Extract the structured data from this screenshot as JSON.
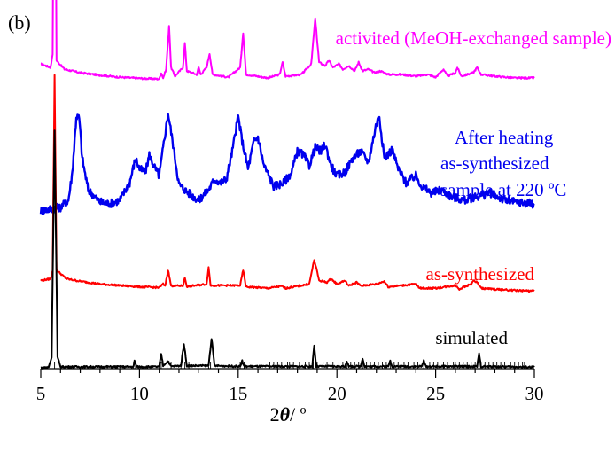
{
  "panel_label": "(b)",
  "chart_data": {
    "type": "line",
    "xlabel_main": "2",
    "xlabel_symbol": "θ",
    "xlabel_unit": "/ º",
    "ylabel": "",
    "xlim": [
      5,
      30
    ],
    "xticks": [
      "5",
      "10",
      "15",
      "20",
      "25",
      "30"
    ],
    "grid": false,
    "legend": "none",
    "series": [
      {
        "name": "activited (MeOH-exchanged sample)",
        "color": "#ff00ff",
        "baseline": 0.82,
        "points": [
          [
            5.0,
            0.87
          ],
          [
            5.5,
            0.86
          ],
          [
            5.6,
            0.9
          ],
          [
            5.7,
            1.82
          ],
          [
            5.8,
            0.88
          ],
          [
            6.2,
            0.855
          ],
          [
            7,
            0.845
          ],
          [
            8,
            0.838
          ],
          [
            9,
            0.832
          ],
          [
            10,
            0.829
          ],
          [
            11,
            0.827
          ],
          [
            11.1,
            0.845
          ],
          [
            11.2,
            0.83
          ],
          [
            11.35,
            0.855
          ],
          [
            11.5,
            0.98
          ],
          [
            11.6,
            0.86
          ],
          [
            11.8,
            0.835
          ],
          [
            12.2,
            0.86
          ],
          [
            12.3,
            0.93
          ],
          [
            12.4,
            0.85
          ],
          [
            12.9,
            0.84
          ],
          [
            13.0,
            0.86
          ],
          [
            13.1,
            0.84
          ],
          [
            13.4,
            0.86
          ],
          [
            13.55,
            0.9
          ],
          [
            13.7,
            0.84
          ],
          [
            14.5,
            0.832
          ],
          [
            15.1,
            0.86
          ],
          [
            15.25,
            0.96
          ],
          [
            15.4,
            0.84
          ],
          [
            16.5,
            0.83
          ],
          [
            17.1,
            0.84
          ],
          [
            17.25,
            0.875
          ],
          [
            17.4,
            0.835
          ],
          [
            18.2,
            0.84
          ],
          [
            18.7,
            0.87
          ],
          [
            18.9,
            1.0
          ],
          [
            19.1,
            0.875
          ],
          [
            19.4,
            0.865
          ],
          [
            19.6,
            0.88
          ],
          [
            19.8,
            0.86
          ],
          [
            20.1,
            0.87
          ],
          [
            20.3,
            0.855
          ],
          [
            20.6,
            0.865
          ],
          [
            20.9,
            0.85
          ],
          [
            21.1,
            0.875
          ],
          [
            21.3,
            0.85
          ],
          [
            21.6,
            0.855
          ],
          [
            21.9,
            0.845
          ],
          [
            22.2,
            0.85
          ],
          [
            22.6,
            0.84
          ],
          [
            23.3,
            0.84
          ],
          [
            24.0,
            0.835
          ],
          [
            24.6,
            0.84
          ],
          [
            25.0,
            0.832
          ],
          [
            25.4,
            0.855
          ],
          [
            25.6,
            0.835
          ],
          [
            26.0,
            0.845
          ],
          [
            26.1,
            0.86
          ],
          [
            26.3,
            0.835
          ],
          [
            26.9,
            0.845
          ],
          [
            27.1,
            0.86
          ],
          [
            27.3,
            0.84
          ],
          [
            28.0,
            0.835
          ],
          [
            29.0,
            0.83
          ],
          [
            30.0,
            0.83
          ]
        ]
      },
      {
        "name": "After heating",
        "label_lines": [
          "After heating",
          "as-synthesized",
          "sample at 220 ºC"
        ],
        "color": "#0000ee",
        "baseline": 0.45,
        "noise": 0.012,
        "points": [
          [
            5.0,
            0.45
          ],
          [
            5.5,
            0.455
          ],
          [
            6.0,
            0.46
          ],
          [
            6.4,
            0.48
          ],
          [
            6.6,
            0.56
          ],
          [
            6.8,
            0.72
          ],
          [
            6.95,
            0.715
          ],
          [
            7.1,
            0.6
          ],
          [
            7.4,
            0.51
          ],
          [
            8.0,
            0.475
          ],
          [
            8.5,
            0.47
          ],
          [
            9.0,
            0.48
          ],
          [
            9.5,
            0.53
          ],
          [
            9.8,
            0.6
          ],
          [
            10.0,
            0.57
          ],
          [
            10.3,
            0.56
          ],
          [
            10.5,
            0.61
          ],
          [
            10.8,
            0.57
          ],
          [
            11.0,
            0.55
          ],
          [
            11.2,
            0.63
          ],
          [
            11.45,
            0.73
          ],
          [
            11.7,
            0.64
          ],
          [
            12.0,
            0.525
          ],
          [
            12.5,
            0.5
          ],
          [
            13.0,
            0.48
          ],
          [
            13.5,
            0.51
          ],
          [
            13.8,
            0.54
          ],
          [
            14.1,
            0.53
          ],
          [
            14.4,
            0.54
          ],
          [
            14.7,
            0.62
          ],
          [
            15.0,
            0.72
          ],
          [
            15.2,
            0.65
          ],
          [
            15.5,
            0.57
          ],
          [
            15.8,
            0.65
          ],
          [
            16.0,
            0.66
          ],
          [
            16.3,
            0.58
          ],
          [
            16.8,
            0.52
          ],
          [
            17.3,
            0.53
          ],
          [
            17.7,
            0.56
          ],
          [
            18.0,
            0.62
          ],
          [
            18.3,
            0.61
          ],
          [
            18.6,
            0.58
          ],
          [
            18.9,
            0.63
          ],
          [
            19.2,
            0.62
          ],
          [
            19.4,
            0.64
          ],
          [
            19.7,
            0.58
          ],
          [
            20.0,
            0.55
          ],
          [
            20.4,
            0.56
          ],
          [
            20.8,
            0.6
          ],
          [
            21.2,
            0.62
          ],
          [
            21.6,
            0.59
          ],
          [
            22.0,
            0.7
          ],
          [
            22.15,
            0.72
          ],
          [
            22.4,
            0.6
          ],
          [
            22.8,
            0.625
          ],
          [
            23.1,
            0.57
          ],
          [
            23.5,
            0.53
          ],
          [
            24.0,
            0.55
          ],
          [
            24.3,
            0.52
          ],
          [
            24.8,
            0.5
          ],
          [
            25.3,
            0.51
          ],
          [
            25.8,
            0.49
          ],
          [
            26.5,
            0.48
          ],
          [
            27.0,
            0.49
          ],
          [
            27.8,
            0.5
          ],
          [
            28.5,
            0.48
          ],
          [
            29.0,
            0.475
          ],
          [
            30.0,
            0.47
          ]
        ]
      },
      {
        "name": "as-synthesized",
        "color": "#ff0000",
        "baseline": 0.22,
        "points": [
          [
            5.0,
            0.25
          ],
          [
            5.5,
            0.255
          ],
          [
            5.6,
            0.28
          ],
          [
            5.7,
            0.84
          ],
          [
            5.8,
            0.28
          ],
          [
            6.3,
            0.255
          ],
          [
            7,
            0.248
          ],
          [
            8,
            0.24
          ],
          [
            9,
            0.236
          ],
          [
            10,
            0.232
          ],
          [
            11,
            0.23
          ],
          [
            11.2,
            0.24
          ],
          [
            11.3,
            0.235
          ],
          [
            11.45,
            0.28
          ],
          [
            11.6,
            0.235
          ],
          [
            12.2,
            0.235
          ],
          [
            12.3,
            0.258
          ],
          [
            12.4,
            0.233
          ],
          [
            13.4,
            0.24
          ],
          [
            13.5,
            0.288
          ],
          [
            13.6,
            0.236
          ],
          [
            15.1,
            0.236
          ],
          [
            15.25,
            0.28
          ],
          [
            15.4,
            0.232
          ],
          [
            16.5,
            0.228
          ],
          [
            17.2,
            0.234
          ],
          [
            17.4,
            0.228
          ],
          [
            18.6,
            0.24
          ],
          [
            18.85,
            0.31
          ],
          [
            19.1,
            0.25
          ],
          [
            19.5,
            0.245
          ],
          [
            19.7,
            0.255
          ],
          [
            20.0,
            0.24
          ],
          [
            20.4,
            0.25
          ],
          [
            20.6,
            0.235
          ],
          [
            21.0,
            0.245
          ],
          [
            21.2,
            0.235
          ],
          [
            22.0,
            0.24
          ],
          [
            22.4,
            0.248
          ],
          [
            22.6,
            0.232
          ],
          [
            24.0,
            0.24
          ],
          [
            24.2,
            0.228
          ],
          [
            25.0,
            0.228
          ],
          [
            26.0,
            0.236
          ],
          [
            26.2,
            0.226
          ],
          [
            26.8,
            0.24
          ],
          [
            26.9,
            0.25
          ],
          [
            27.1,
            0.245
          ],
          [
            27.3,
            0.228
          ],
          [
            28.0,
            0.225
          ],
          [
            29.0,
            0.222
          ],
          [
            30.0,
            0.22
          ]
        ]
      },
      {
        "name": "simulated",
        "color": "#000000",
        "baseline": 0.0,
        "points": [
          [
            5.0,
            0.0
          ],
          [
            5.4,
            0.002
          ],
          [
            5.55,
            0.03
          ],
          [
            5.7,
            0.68
          ],
          [
            5.85,
            0.03
          ],
          [
            6.0,
            0.003
          ],
          [
            9.7,
            0.003
          ],
          [
            9.75,
            0.02
          ],
          [
            9.85,
            0.003
          ],
          [
            11.0,
            0.003
          ],
          [
            11.1,
            0.04
          ],
          [
            11.2,
            0.006
          ],
          [
            11.45,
            0.02
          ],
          [
            11.6,
            0.004
          ],
          [
            12.1,
            0.006
          ],
          [
            12.25,
            0.07
          ],
          [
            12.4,
            0.006
          ],
          [
            13.5,
            0.006
          ],
          [
            13.65,
            0.085
          ],
          [
            13.8,
            0.006
          ],
          [
            15.1,
            0.004
          ],
          [
            15.2,
            0.02
          ],
          [
            15.3,
            0.004
          ],
          [
            18.75,
            0.004
          ],
          [
            18.85,
            0.065
          ],
          [
            18.95,
            0.004
          ],
          [
            20.4,
            0.004
          ],
          [
            20.5,
            0.02
          ],
          [
            20.6,
            0.004
          ],
          [
            21.2,
            0.004
          ],
          [
            21.3,
            0.028
          ],
          [
            21.4,
            0.004
          ],
          [
            22.6,
            0.004
          ],
          [
            22.7,
            0.02
          ],
          [
            22.8,
            0.004
          ],
          [
            24.3,
            0.004
          ],
          [
            24.4,
            0.02
          ],
          [
            24.5,
            0.004
          ],
          [
            27.1,
            0.004
          ],
          [
            27.2,
            0.04
          ],
          [
            27.3,
            0.004
          ],
          [
            30.0,
            0.002
          ]
        ]
      }
    ],
    "reflection_ticks": [
      5.7,
      9.7,
      9.8,
      11.0,
      11.1,
      11.4,
      11.6,
      11.8,
      12.1,
      12.3,
      12.5,
      13.5,
      13.6,
      15.1,
      15.3,
      16.6,
      16.8,
      17.0,
      17.2,
      17.5,
      17.6,
      17.8,
      18.1,
      18.4,
      18.6,
      18.8,
      19.0,
      19.3,
      19.5,
      19.8,
      20.1,
      20.3,
      20.5,
      20.7,
      20.9,
      21.1,
      21.3,
      21.5,
      21.7,
      21.9,
      22.1,
      22.3,
      22.5,
      22.7,
      22.9,
      23.1,
      23.4,
      23.6,
      23.9,
      24.1,
      24.4,
      24.7,
      24.9,
      25.1,
      25.4,
      25.6,
      25.9,
      26.0,
      26.2,
      26.4,
      26.6,
      26.8,
      27.0,
      27.2,
      27.3,
      27.5,
      27.7,
      27.9,
      28.1,
      28.3,
      28.5,
      28.8,
      29.0,
      29.2,
      29.4,
      29.5
    ]
  }
}
